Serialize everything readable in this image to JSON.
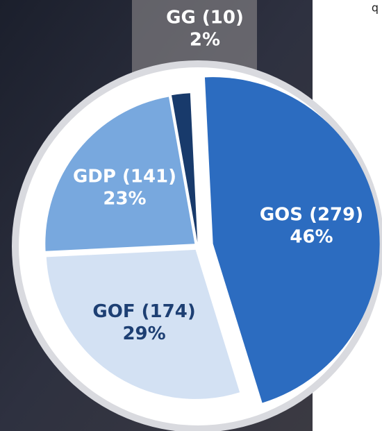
{
  "chart_data": {
    "type": "pie",
    "categories": [
      "GG (10)",
      "GOS (279)",
      "GOF (174)",
      "GDP (141)"
    ],
    "values": [
      2,
      46,
      29,
      23
    ],
    "value_labels": [
      "2%",
      "46%",
      "29%",
      "23%"
    ],
    "colors": [
      "#183a6b",
      "#2c6cc0",
      "#d3e1f3",
      "#78a8de"
    ],
    "label_colors": [
      "#ffffff",
      "#ffffff",
      "#1d3f73",
      "#ffffff"
    ]
  },
  "corner_text": "q"
}
